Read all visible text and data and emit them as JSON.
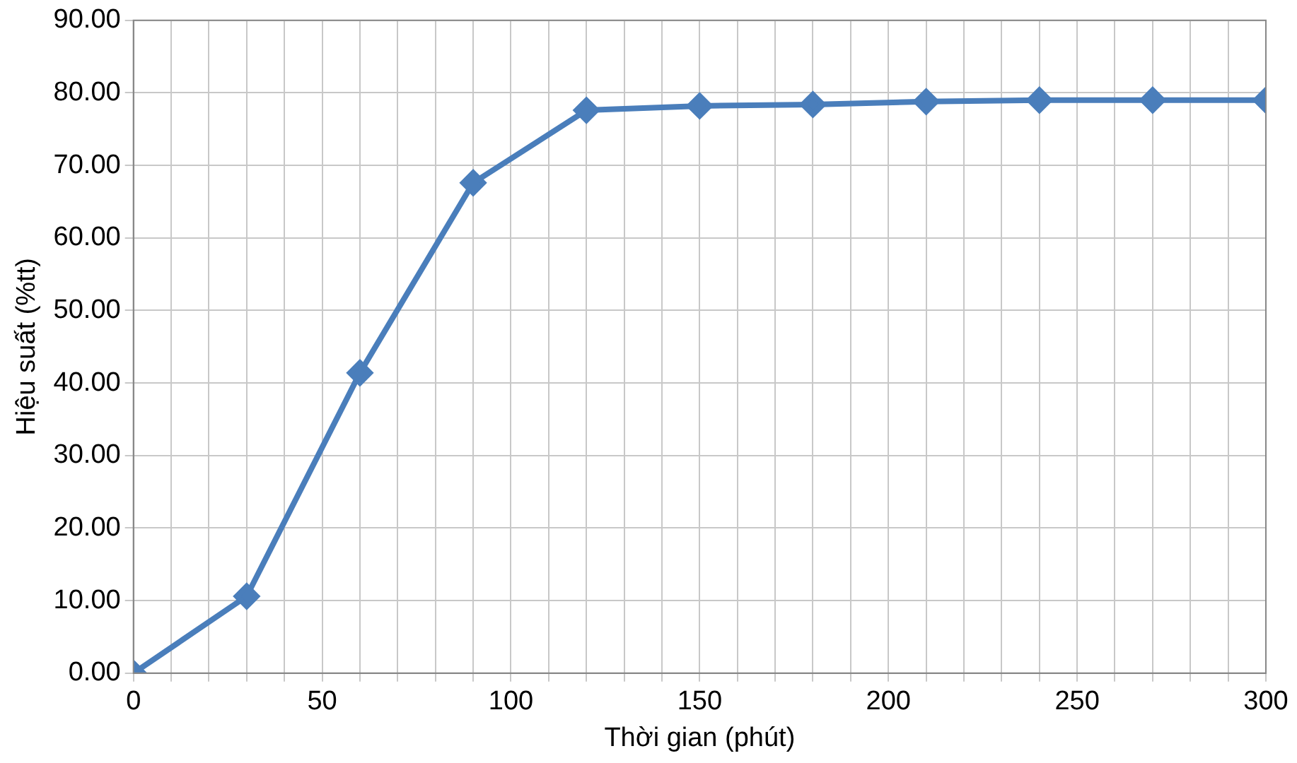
{
  "chart_data": {
    "type": "line",
    "xlabel": "Thời gian (phút)",
    "ylabel": "Hiệu suất (%tt)",
    "x": [
      0,
      30,
      60,
      90,
      120,
      150,
      180,
      210,
      240,
      270,
      300
    ],
    "series": [
      {
        "color": "#4a7ebb",
        "values": [
          0,
          10.6,
          41.4,
          67.6,
          77.6,
          78.2,
          78.4,
          78.8,
          79.0,
          79.0,
          79.0
        ]
      }
    ],
    "xlim": [
      0,
      300
    ],
    "xticks": [
      0,
      {
        "value": 10,
        "label": null
      },
      {
        "value": 20,
        "label": null
      },
      {
        "value": 30,
        "label": null
      },
      {
        "value": 40,
        "label": null
      },
      50,
      {
        "value": 60,
        "label": null
      },
      {
        "value": 70,
        "label": null
      },
      {
        "value": 80,
        "label": null
      },
      {
        "value": 90,
        "label": null
      },
      100,
      {
        "value": 110,
        "label": null
      },
      {
        "value": 120,
        "label": null
      },
      {
        "value": 130,
        "label": null
      },
      {
        "value": 140,
        "label": null
      },
      150,
      {
        "value": 160,
        "label": null
      },
      {
        "value": 170,
        "label": null
      },
      {
        "value": 180,
        "label": null
      },
      {
        "value": 190,
        "label": null
      },
      200,
      {
        "value": 210,
        "label": null
      },
      {
        "value": 220,
        "label": null
      },
      {
        "value": 230,
        "label": null
      },
      {
        "value": 240,
        "label": null
      },
      250,
      {
        "value": 260,
        "label": null
      },
      {
        "value": 270,
        "label": null
      },
      {
        "value": 280,
        "label": null
      },
      {
        "value": 290,
        "label": null
      },
      300
    ],
    "ylim": [
      0,
      90
    ],
    "yticks": [
      {
        "value": 0,
        "label": "0.00"
      },
      {
        "value": 10,
        "label": "10.00"
      },
      {
        "value": 20,
        "label": "20.00"
      },
      {
        "value": 30,
        "label": "30.00"
      },
      {
        "value": 40,
        "label": "40.00"
      },
      {
        "value": 50,
        "label": "50.00"
      },
      {
        "value": 60,
        "label": "60.00"
      },
      {
        "value": 70,
        "label": "70.00"
      },
      {
        "value": 80,
        "label": "80.00"
      },
      {
        "value": 90,
        "label": "90.00"
      }
    ],
    "grid": true,
    "legend": false,
    "marker": "diamond",
    "line_style": "solid"
  }
}
